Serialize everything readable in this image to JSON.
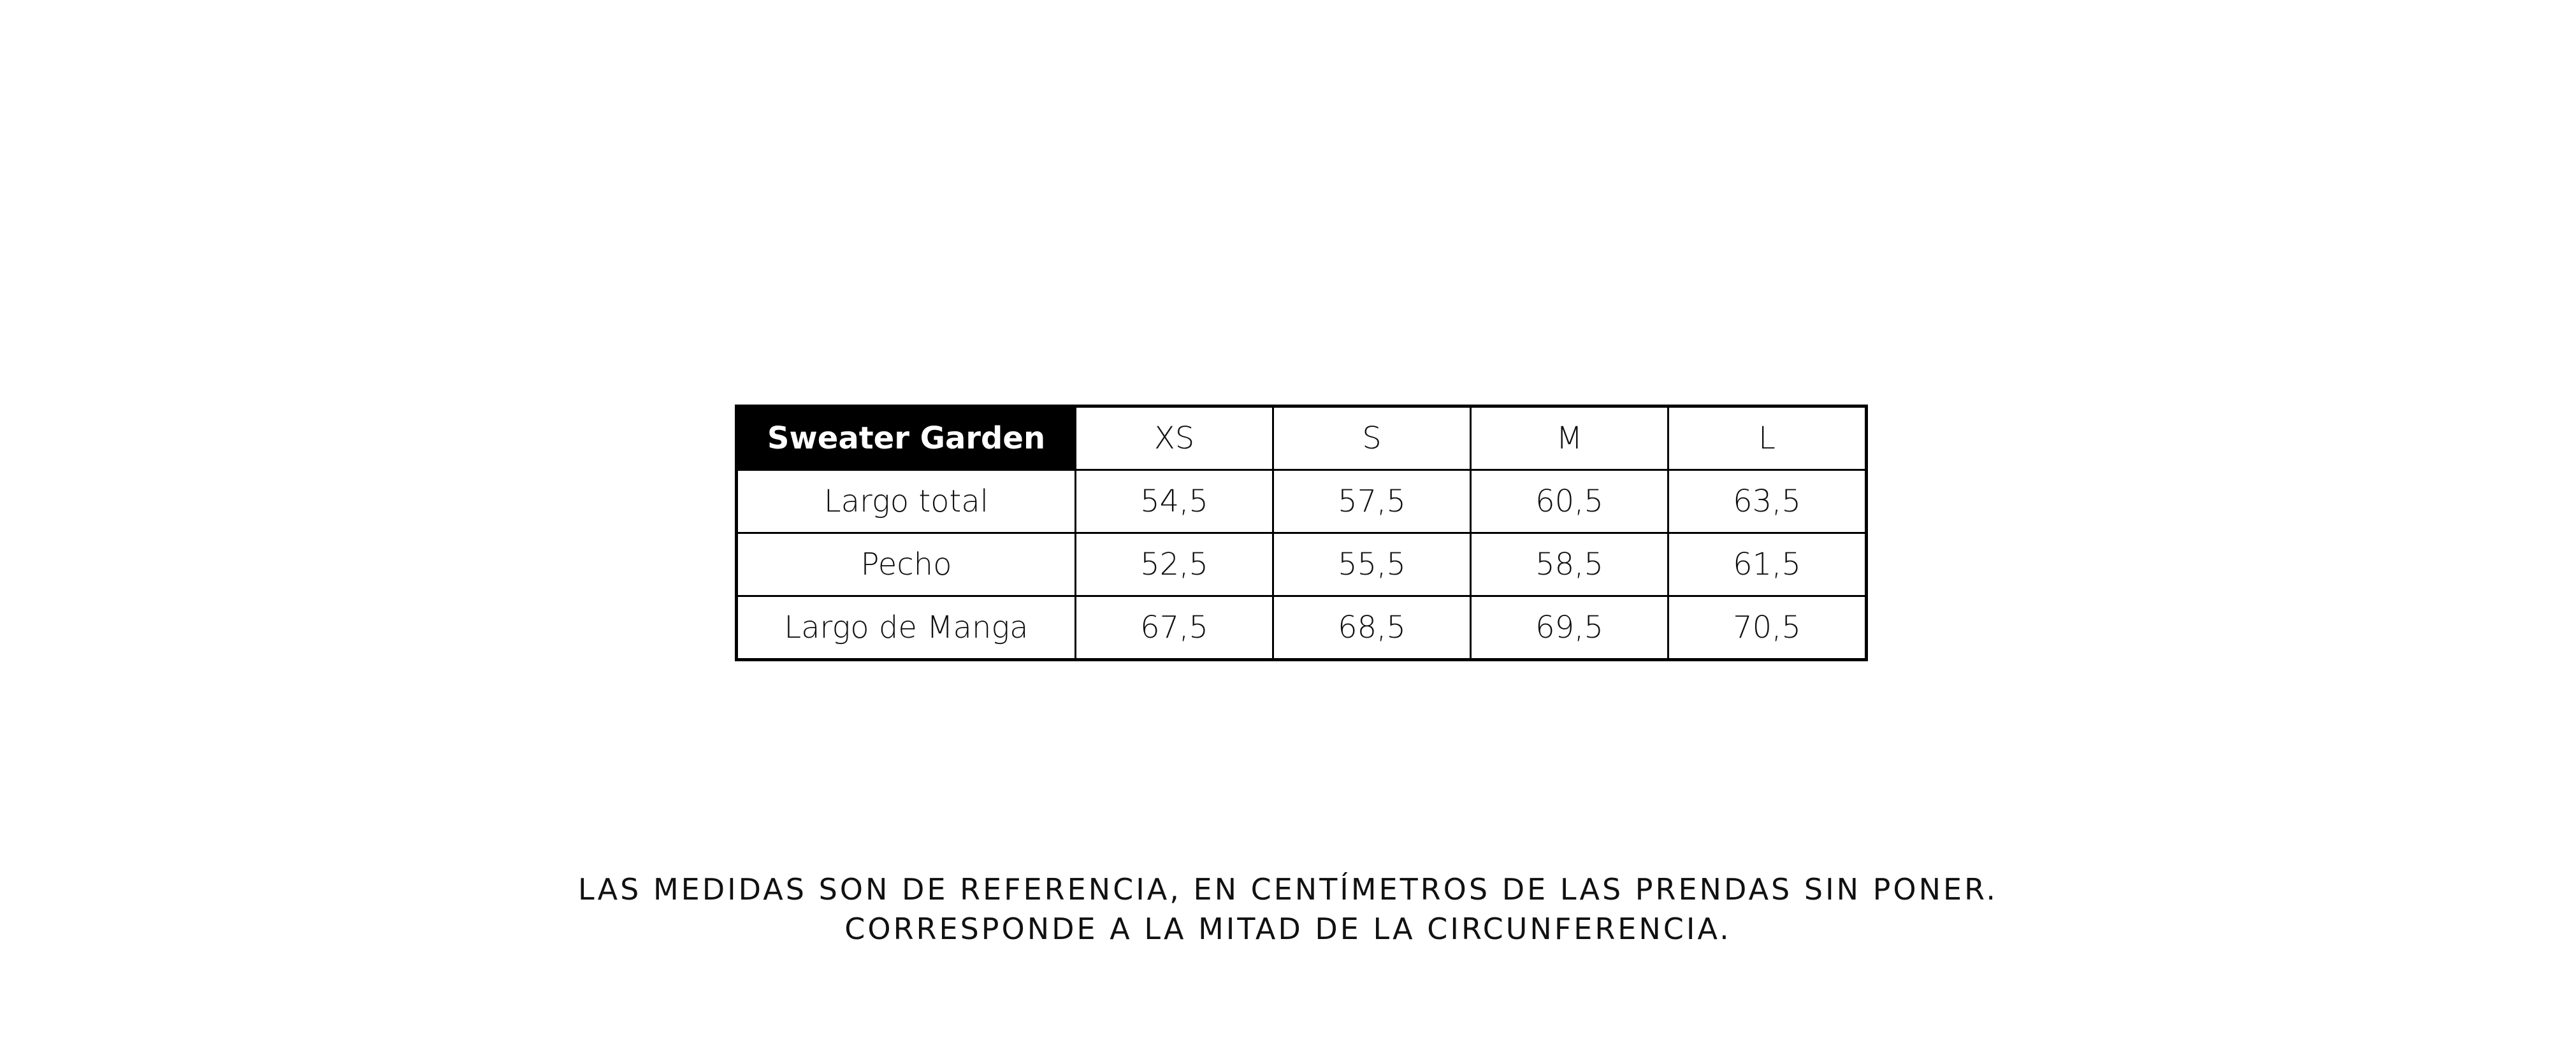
{
  "table": {
    "header": [
      "Sweater Garden",
      "XS",
      "S",
      "M",
      "L"
    ],
    "rows": [
      [
        "Largo total",
        "54,5",
        "57,5",
        "60,5",
        "63,5"
      ],
      [
        "Pecho",
        "52,5",
        "55,5",
        "58,5",
        "61,5"
      ],
      [
        "Largo de Manga",
        "67,5",
        "68,5",
        "69,5",
        "70,5"
      ]
    ]
  },
  "note": {
    "lines": [
      "LAS MEDIDAS SON DE REFERENCIA, EN CENTÍMETROS DE LAS PRENDAS SIN PONER.",
      "CORRESPONDE A LA MITAD DE LA CIRCUNFERENCIA."
    ]
  }
}
